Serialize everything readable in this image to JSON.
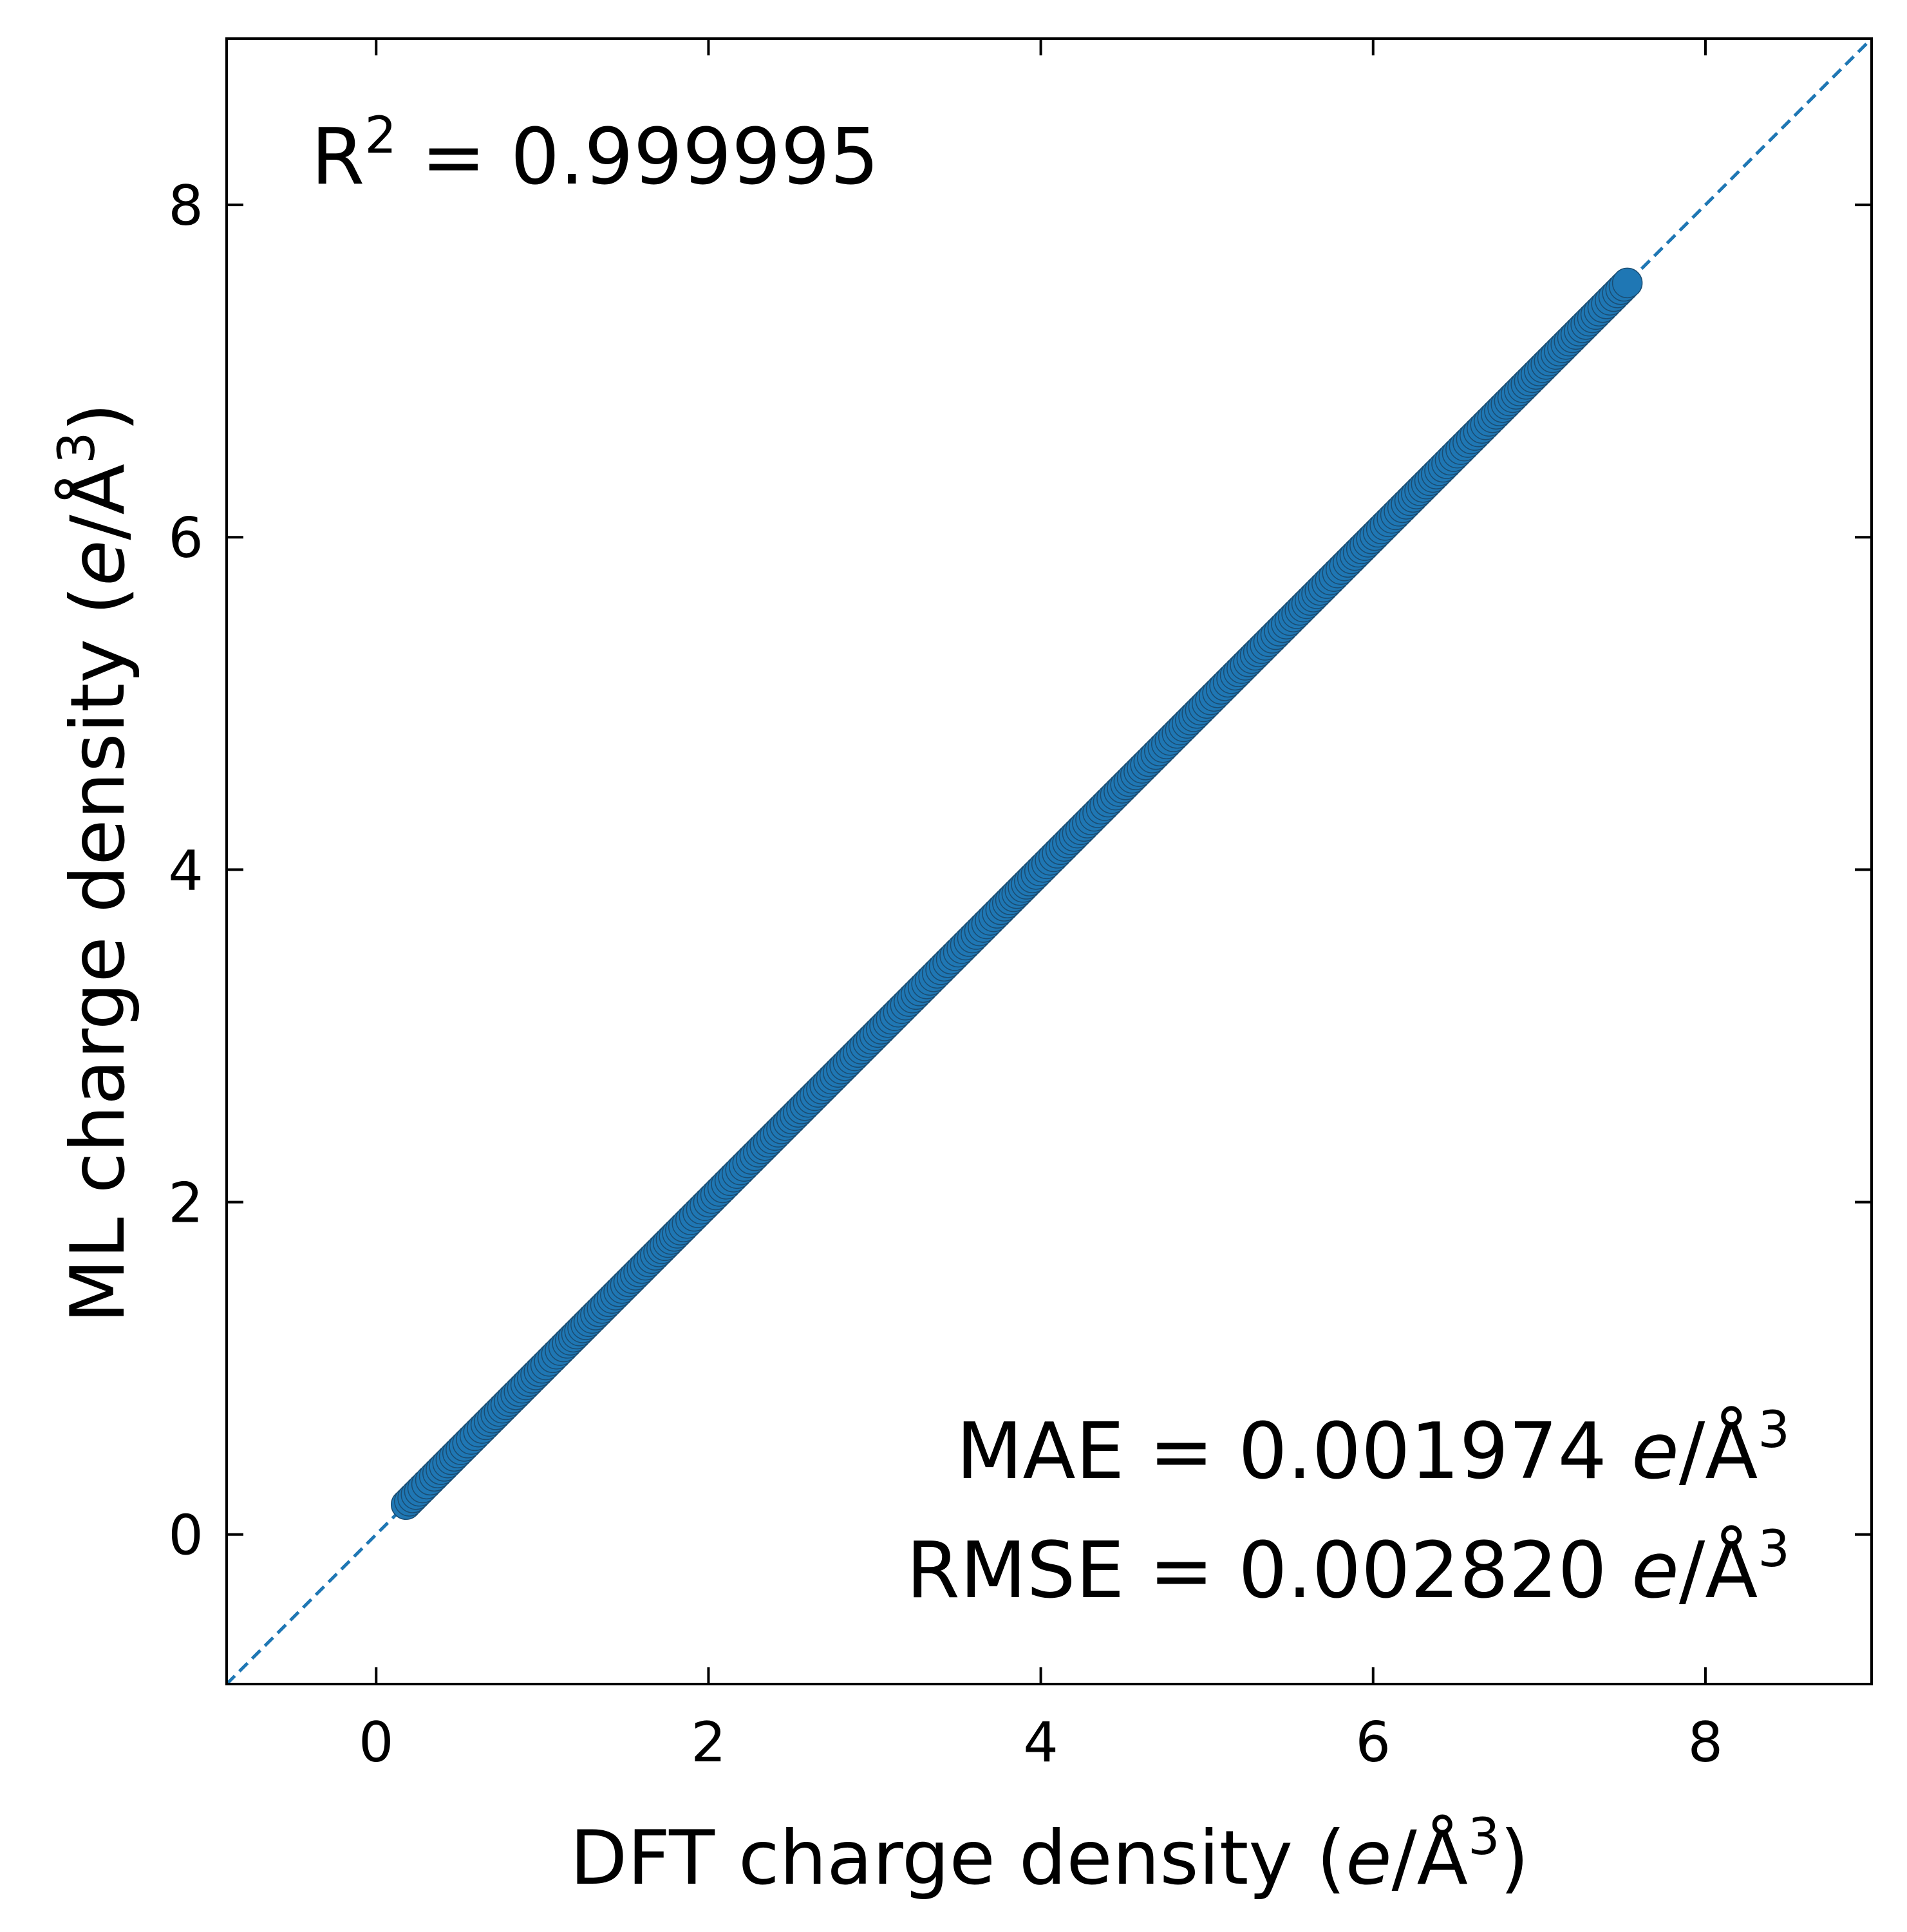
{
  "chart_data": {
    "type": "scatter",
    "xlabel": {
      "prefix": "DFT charge density (",
      "unit_e": "e",
      "unit_rest": "/Å",
      "unit_sup": "3",
      "suffix": ")"
    },
    "ylabel": {
      "prefix": "ML charge density (",
      "unit_e": "e",
      "unit_rest": "/Å",
      "unit_sup": "3",
      "suffix": ")"
    },
    "xlim": [
      -0.9,
      9.0
    ],
    "ylim": [
      -0.9,
      9.0
    ],
    "xticks": [
      0,
      2,
      4,
      6,
      8
    ],
    "yticks": [
      0,
      2,
      4,
      6,
      8
    ],
    "xtick_labels": [
      "0",
      "2",
      "4",
      "6",
      "8"
    ],
    "ytick_labels": [
      "0",
      "2",
      "4",
      "6",
      "8"
    ],
    "grid": false,
    "reference_line": {
      "style": "dashed",
      "from": [
        -0.9,
        -0.9
      ],
      "to": [
        9.0,
        9.0
      ],
      "color": "#1f77b4"
    },
    "series": [
      {
        "marker": "circle",
        "color": "#1f77b4",
        "edge_color": "#1a4d73",
        "x": [
          0.18,
          0.22,
          0.28,
          0.35,
          0.45,
          0.55,
          0.66,
          0.78,
          0.9,
          1.02,
          1.15,
          1.28,
          1.42,
          1.56,
          1.7,
          1.85,
          2.0,
          2.15,
          2.3,
          2.46,
          2.62,
          2.78,
          2.94,
          3.1,
          3.27,
          3.44,
          3.61,
          3.78,
          3.95,
          4.12,
          4.3,
          4.47,
          4.65,
          4.82,
          5.0,
          5.17,
          5.35,
          5.52,
          5.7,
          5.87,
          6.05,
          6.22,
          6.4,
          6.57,
          6.74,
          6.9,
          7.06,
          7.22,
          7.36,
          7.47,
          7.53
        ],
        "y": [
          0.18,
          0.22,
          0.28,
          0.35,
          0.45,
          0.55,
          0.66,
          0.78,
          0.9,
          1.02,
          1.15,
          1.28,
          1.42,
          1.56,
          1.7,
          1.85,
          2.0,
          2.15,
          2.3,
          2.46,
          2.62,
          2.78,
          2.94,
          3.1,
          3.27,
          3.44,
          3.61,
          3.78,
          3.95,
          4.12,
          4.3,
          4.47,
          4.65,
          4.82,
          5.0,
          5.17,
          5.35,
          5.52,
          5.7,
          5.87,
          6.05,
          6.22,
          6.4,
          6.57,
          6.74,
          6.9,
          7.06,
          7.22,
          7.36,
          7.47,
          7.53
        ]
      }
    ],
    "annotations": {
      "r2": {
        "base": "R",
        "sup": "2",
        "rest": " = 0.999995"
      },
      "mae": {
        "text": "MAE = 0.001974 ",
        "unit_e": "e",
        "unit_rest": "/Å",
        "unit_sup": "3"
      },
      "rmse": {
        "text": "RMSE = 0.002820 ",
        "unit_e": "e",
        "unit_rest": "/Å",
        "unit_sup": "3"
      }
    }
  }
}
